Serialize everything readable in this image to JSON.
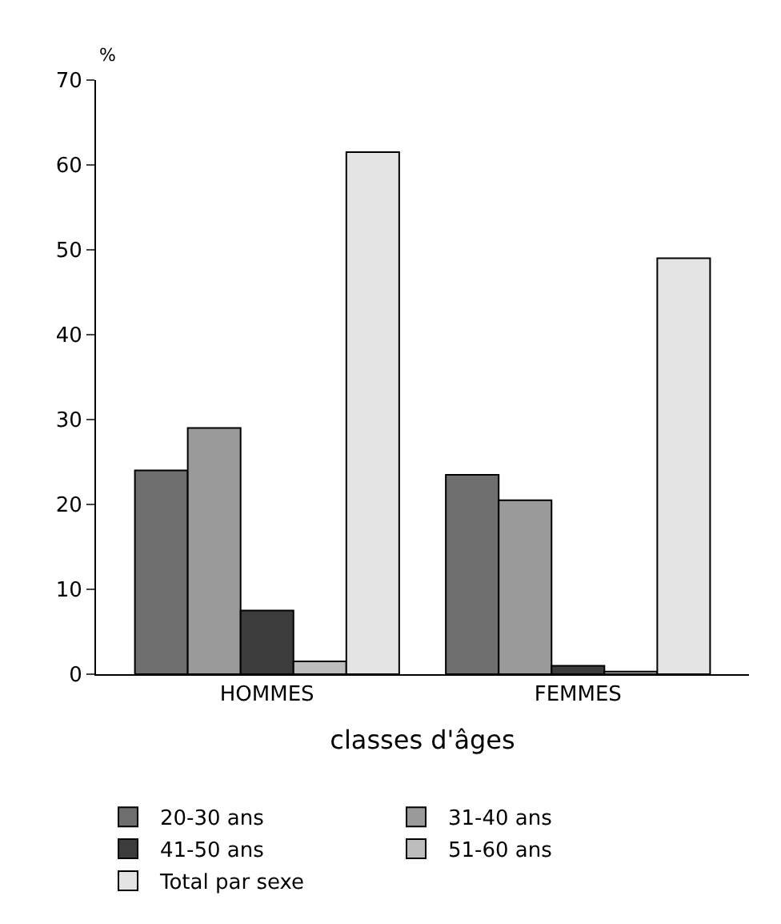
{
  "chart_data": {
    "type": "bar",
    "ylabel": "%",
    "xlabel": "classes d'âges",
    "categories": [
      "HOMMES",
      "FEMMES"
    ],
    "series": [
      {
        "name": "20-30 ans",
        "color": "#6e6e6e",
        "values": [
          24,
          23.5
        ]
      },
      {
        "name": "31-40 ans",
        "color": "#9a9a9a",
        "values": [
          29,
          20.5
        ]
      },
      {
        "name": "41-50 ans",
        "color": "#3c3c3c",
        "values": [
          7.5,
          1
        ]
      },
      {
        "name": "51-60 ans",
        "color": "#bdbdbd",
        "values": [
          1.5,
          0.3
        ]
      },
      {
        "name": "Total par sexe",
        "color": "#e4e4e4",
        "values": [
          61.5,
          49
        ]
      }
    ],
    "ylim": [
      0,
      70
    ],
    "yticks": [
      0,
      10,
      20,
      30,
      40,
      50,
      60,
      70
    ],
    "legend": "bottom"
  }
}
